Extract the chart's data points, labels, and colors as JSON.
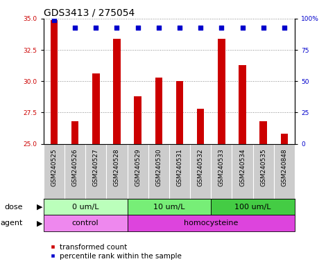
{
  "title": "GDS3413 / 275054",
  "samples": [
    "GSM240525",
    "GSM240526",
    "GSM240527",
    "GSM240528",
    "GSM240529",
    "GSM240530",
    "GSM240531",
    "GSM240532",
    "GSM240533",
    "GSM240534",
    "GSM240535",
    "GSM240848"
  ],
  "transformed_count": [
    34.9,
    26.8,
    30.6,
    33.4,
    28.8,
    30.3,
    30.0,
    27.8,
    33.4,
    31.3,
    26.8,
    25.8
  ],
  "percentile_rank": [
    99,
    93,
    93,
    93,
    93,
    93,
    93,
    93,
    93,
    93,
    93,
    93
  ],
  "ylim_left": [
    25,
    35
  ],
  "ylim_right": [
    0,
    100
  ],
  "yticks_left": [
    25,
    27.5,
    30,
    32.5,
    35
  ],
  "yticks_right": [
    0,
    25,
    50,
    75,
    100
  ],
  "bar_color": "#cc0000",
  "dot_color": "#0000cc",
  "bar_width": 0.35,
  "dose_groups": [
    {
      "label": "0 um/L",
      "start": 0,
      "end": 4,
      "color": "#bbffbb"
    },
    {
      "label": "10 um/L",
      "start": 4,
      "end": 8,
      "color": "#77ee77"
    },
    {
      "label": "100 um/L",
      "start": 8,
      "end": 12,
      "color": "#44cc44"
    }
  ],
  "agent_groups": [
    {
      "label": "control",
      "start": 0,
      "end": 4,
      "color": "#ee88ee"
    },
    {
      "label": "homocysteine",
      "start": 4,
      "end": 12,
      "color": "#dd44dd"
    }
  ],
  "dose_label": "dose",
  "agent_label": "agent",
  "legend_bar_label": "transformed count",
  "legend_dot_label": "percentile rank within the sample",
  "title_fontsize": 10,
  "tick_fontsize": 6.5,
  "label_fontsize": 8,
  "annotation_fontsize": 8,
  "legend_fontsize": 7.5,
  "sample_bg_color": "#cccccc",
  "grid_color": "#888888"
}
